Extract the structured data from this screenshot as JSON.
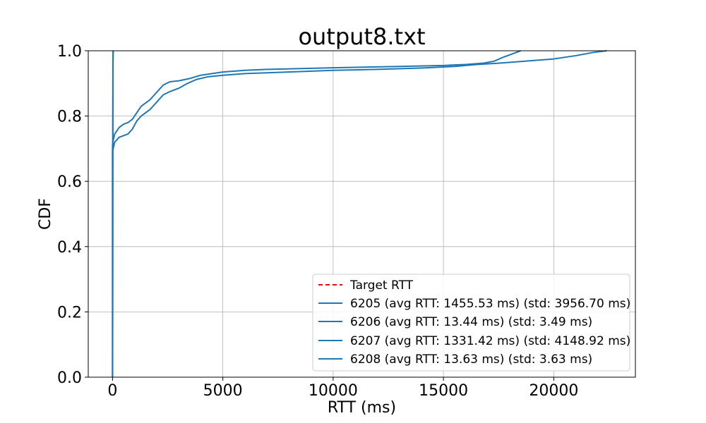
{
  "chart_data": {
    "type": "line",
    "title": "output8.txt",
    "xlabel": "RTT (ms)",
    "ylabel": "CDF",
    "xlim": [
      -1100,
      23700
    ],
    "ylim": [
      0.0,
      1.0
    ],
    "grid": true,
    "legend_position": "lower-right",
    "x_ticks": [
      0,
      5000,
      10000,
      15000,
      20000
    ],
    "x_tick_labels": [
      "0",
      "5000",
      "10000",
      "15000",
      "20000"
    ],
    "y_ticks": [
      0.0,
      0.2,
      0.4,
      0.6,
      0.8,
      1.0
    ],
    "y_tick_labels": [
      "0.0",
      "0.2",
      "0.4",
      "0.6",
      "0.8",
      "1.0"
    ],
    "target_rtt": {
      "name": "Target RTT",
      "color": "#ff0000",
      "style": "dashed",
      "x": []
    },
    "series": [
      {
        "name": "6205 (avg RTT: 1455.53 ms) (std: 3956.70 ms)",
        "color": "#1f77b4",
        "points": [
          [
            0,
            0
          ],
          [
            0,
            0.69
          ],
          [
            30,
            0.7
          ],
          [
            100,
            0.72
          ],
          [
            300,
            0.735
          ],
          [
            500,
            0.74
          ],
          [
            700,
            0.745
          ],
          [
            900,
            0.76
          ],
          [
            1100,
            0.785
          ],
          [
            1300,
            0.8
          ],
          [
            1500,
            0.81
          ],
          [
            1700,
            0.82
          ],
          [
            1900,
            0.835
          ],
          [
            2100,
            0.85
          ],
          [
            2300,
            0.865
          ],
          [
            2600,
            0.875
          ],
          [
            3000,
            0.885
          ],
          [
            3400,
            0.9
          ],
          [
            3800,
            0.912
          ],
          [
            4300,
            0.92
          ],
          [
            5000,
            0.925
          ],
          [
            6000,
            0.93
          ],
          [
            8000,
            0.935
          ],
          [
            10000,
            0.94
          ],
          [
            12000,
            0.943
          ],
          [
            14000,
            0.947
          ],
          [
            15500,
            0.952
          ],
          [
            16500,
            0.958
          ],
          [
            17500,
            0.962
          ],
          [
            18500,
            0.967
          ],
          [
            20000,
            0.975
          ],
          [
            21000,
            0.985
          ],
          [
            21800,
            0.995
          ],
          [
            22400,
            1.0
          ]
        ]
      },
      {
        "name": "6206 (avg RTT: 13.44 ms) (std: 3.49 ms)",
        "color": "#1f77b4",
        "points": [
          [
            0,
            0
          ],
          [
            2,
            0.001
          ],
          [
            5,
            0.1
          ],
          [
            8,
            0.3
          ],
          [
            11,
            0.5
          ],
          [
            13,
            0.65
          ],
          [
            15,
            0.8
          ],
          [
            18,
            0.9
          ],
          [
            22,
            0.97
          ],
          [
            28,
            1.0
          ]
        ]
      },
      {
        "name": "6207 (avg RTT: 1331.42 ms) (std: 4148.92 ms)",
        "color": "#1f77b4",
        "points": [
          [
            0,
            0
          ],
          [
            0,
            0.71
          ],
          [
            30,
            0.725
          ],
          [
            100,
            0.745
          ],
          [
            300,
            0.765
          ],
          [
            500,
            0.775
          ],
          [
            700,
            0.78
          ],
          [
            900,
            0.79
          ],
          [
            1100,
            0.81
          ],
          [
            1300,
            0.83
          ],
          [
            1500,
            0.84
          ],
          [
            1700,
            0.85
          ],
          [
            1900,
            0.865
          ],
          [
            2100,
            0.88
          ],
          [
            2300,
            0.895
          ],
          [
            2600,
            0.905
          ],
          [
            3000,
            0.908
          ],
          [
            3500,
            0.915
          ],
          [
            4000,
            0.925
          ],
          [
            5000,
            0.935
          ],
          [
            6000,
            0.94
          ],
          [
            7000,
            0.943
          ],
          [
            10000,
            0.948
          ],
          [
            13000,
            0.952
          ],
          [
            15000,
            0.955
          ],
          [
            16000,
            0.958
          ],
          [
            16800,
            0.962
          ],
          [
            17300,
            0.968
          ],
          [
            17700,
            0.98
          ],
          [
            18100,
            0.99
          ],
          [
            18500,
            1.0
          ]
        ]
      },
      {
        "name": "6208 (avg RTT: 13.63 ms) (std: 3.63 ms)",
        "color": "#1f77b4",
        "points": [
          [
            0,
            0
          ],
          [
            2,
            0.001
          ],
          [
            5,
            0.1
          ],
          [
            8,
            0.28
          ],
          [
            11,
            0.48
          ],
          [
            13,
            0.63
          ],
          [
            15,
            0.78
          ],
          [
            18,
            0.89
          ],
          [
            22,
            0.96
          ],
          [
            30,
            1.0
          ]
        ]
      }
    ]
  }
}
